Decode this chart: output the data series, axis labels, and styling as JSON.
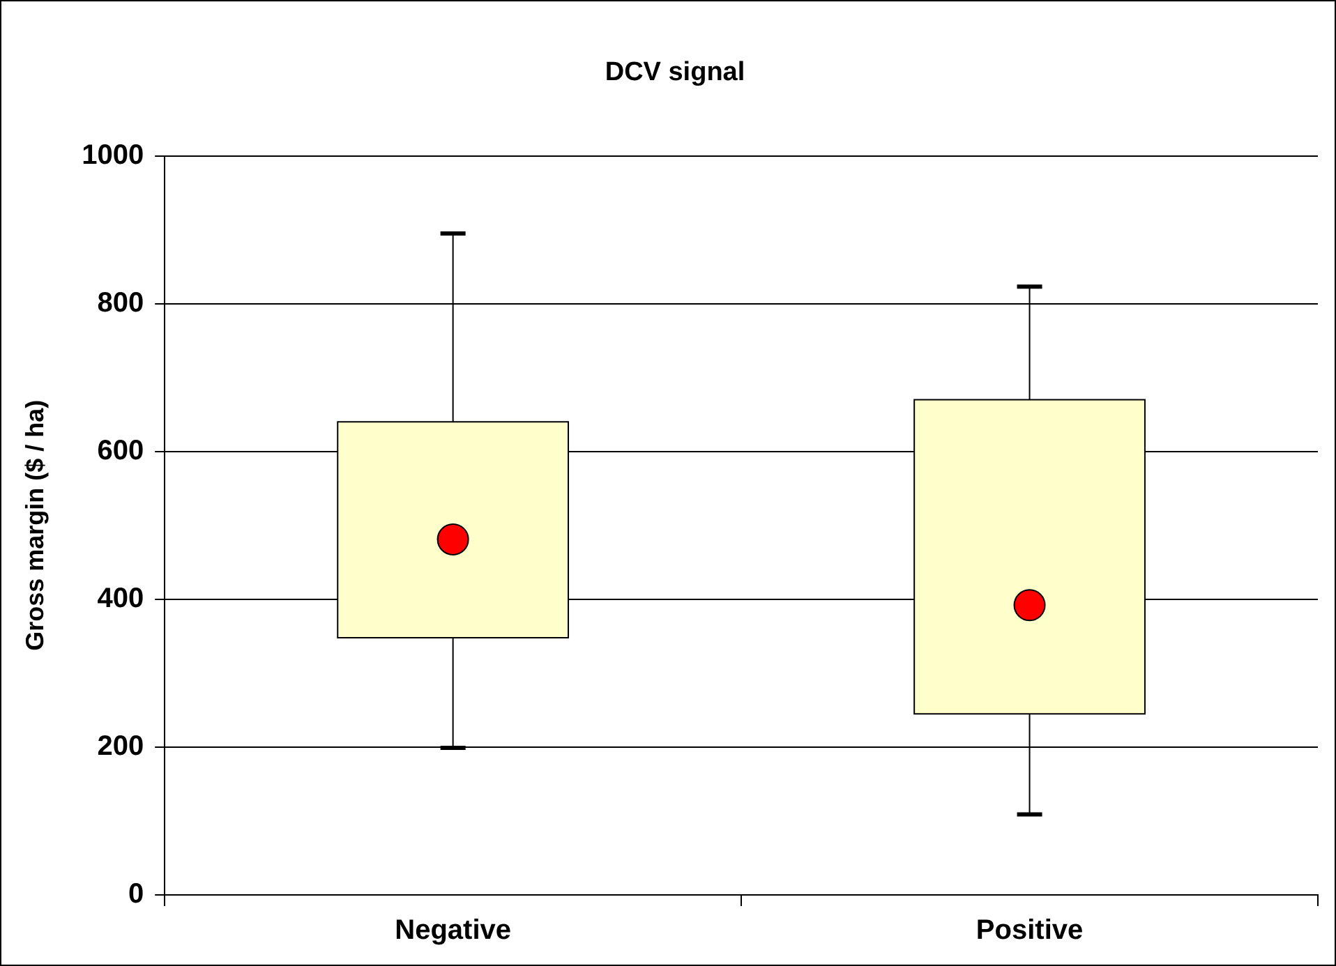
{
  "chart_data": {
    "type": "box",
    "title": "DCV signal",
    "ylabel": "Gross margin ($ / ha)",
    "categories": [
      "Negative",
      "Positive"
    ],
    "boxes": [
      {
        "low": 199,
        "q1": 348,
        "median": 481,
        "q3": 640,
        "high": 895
      },
      {
        "low": 109,
        "q1": 245,
        "median": 392,
        "q3": 670,
        "high": 823
      }
    ],
    "color": "#ffffcc",
    "ylim": [
      0,
      1000
    ],
    "yticks": [
      0,
      200,
      400,
      600,
      800,
      1000
    ],
    "grid": "y",
    "legend": false,
    "marker": "circle"
  }
}
